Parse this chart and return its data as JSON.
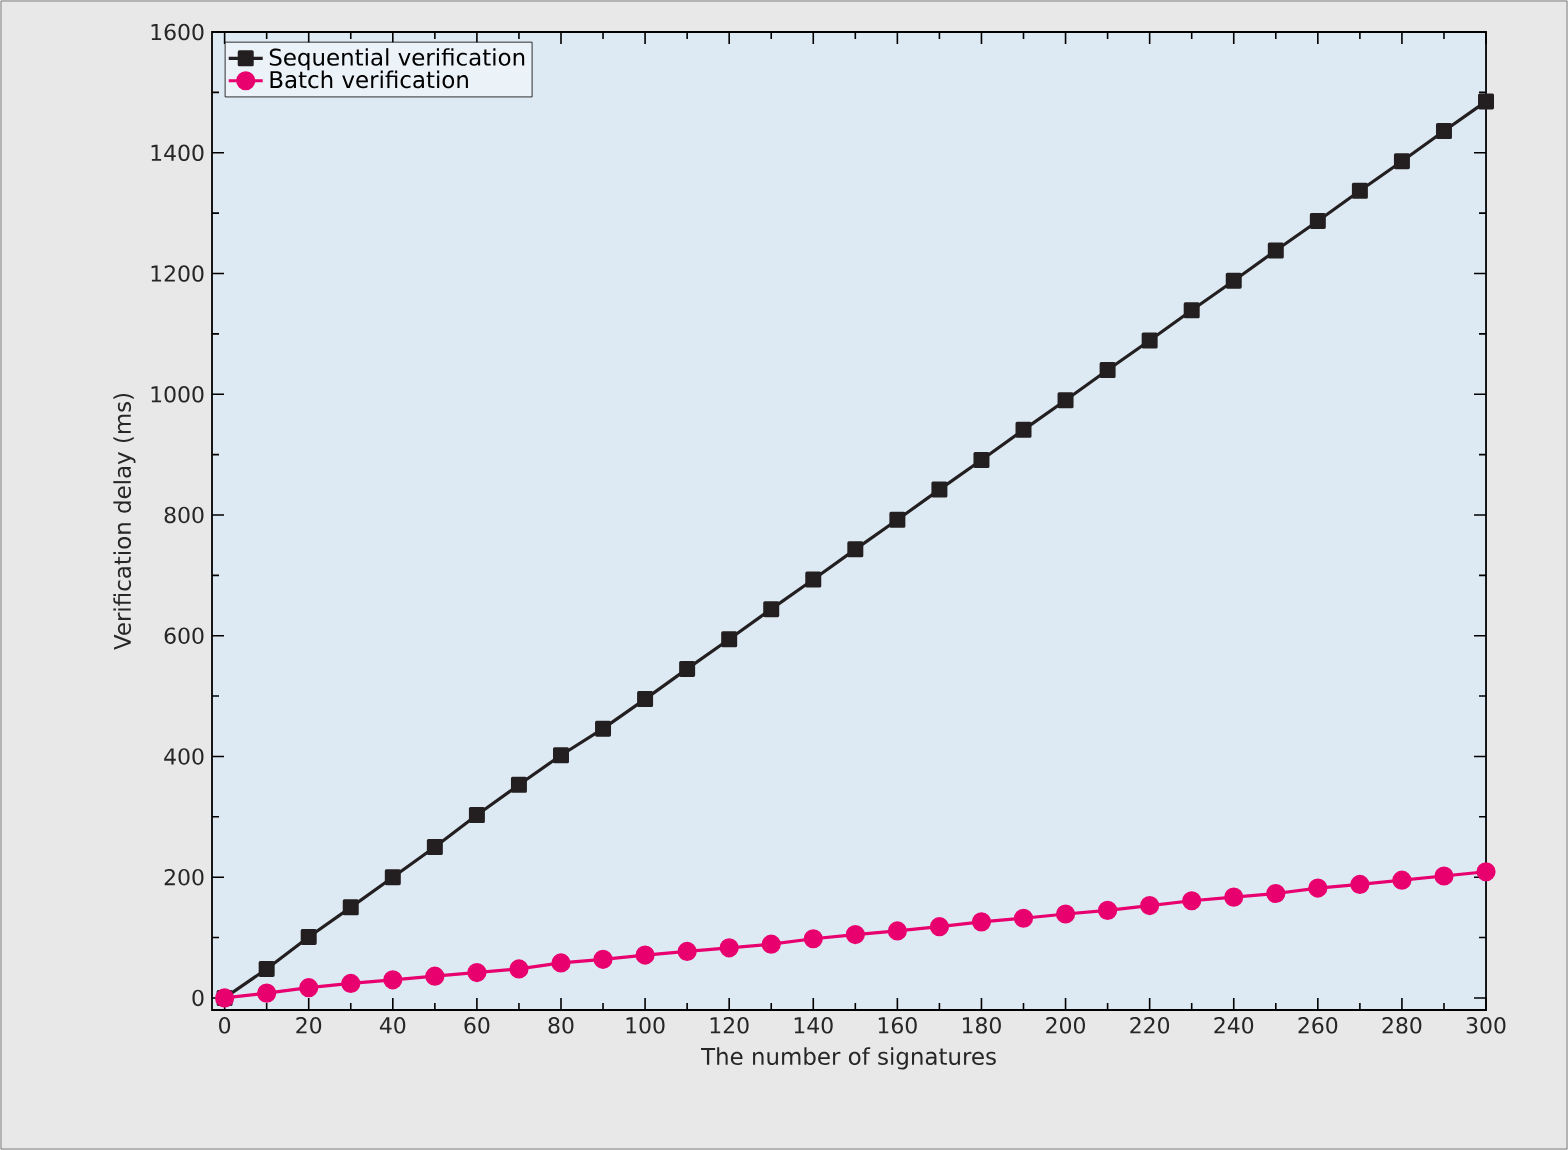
{
  "chart_data": {
    "type": "line",
    "xlabel": "The number of signatures",
    "ylabel": "Verification delay (ms)",
    "x": [
      0,
      10,
      20,
      30,
      40,
      50,
      60,
      70,
      80,
      90,
      100,
      110,
      120,
      130,
      140,
      150,
      160,
      170,
      180,
      190,
      200,
      210,
      220,
      230,
      240,
      250,
      260,
      270,
      280,
      290,
      300
    ],
    "series": [
      {
        "name": "Sequential verification",
        "color": "#231f20",
        "marker": "square",
        "values": [
          0,
          48,
          101,
          150,
          200,
          250,
          303,
          353,
          402,
          446,
          495,
          545,
          594,
          644,
          693,
          743,
          792,
          842,
          891,
          941,
          990,
          1040,
          1089,
          1139,
          1188,
          1238,
          1287,
          1337,
          1386,
          1436,
          1485
        ]
      },
      {
        "name": "Batch verification",
        "color": "#e8006f",
        "marker": "circle",
        "values": [
          0,
          8,
          17,
          24,
          30,
          36,
          42,
          48,
          58,
          64,
          71,
          77,
          83,
          89,
          98,
          105,
          111,
          118,
          126,
          132,
          139,
          145,
          153,
          161,
          167,
          173,
          182,
          188,
          195,
          202,
          209
        ]
      }
    ],
    "xlim": [
      -3,
      300
    ],
    "ylim": [
      -20,
      1600
    ],
    "xticks": [
      0,
      20,
      40,
      60,
      80,
      100,
      120,
      140,
      160,
      180,
      200,
      220,
      240,
      260,
      280,
      300
    ],
    "yticks": [
      0,
      200,
      400,
      600,
      800,
      1000,
      1200,
      1400,
      1600
    ],
    "grid": false,
    "legend": "top left",
    "line_style": "solid"
  }
}
